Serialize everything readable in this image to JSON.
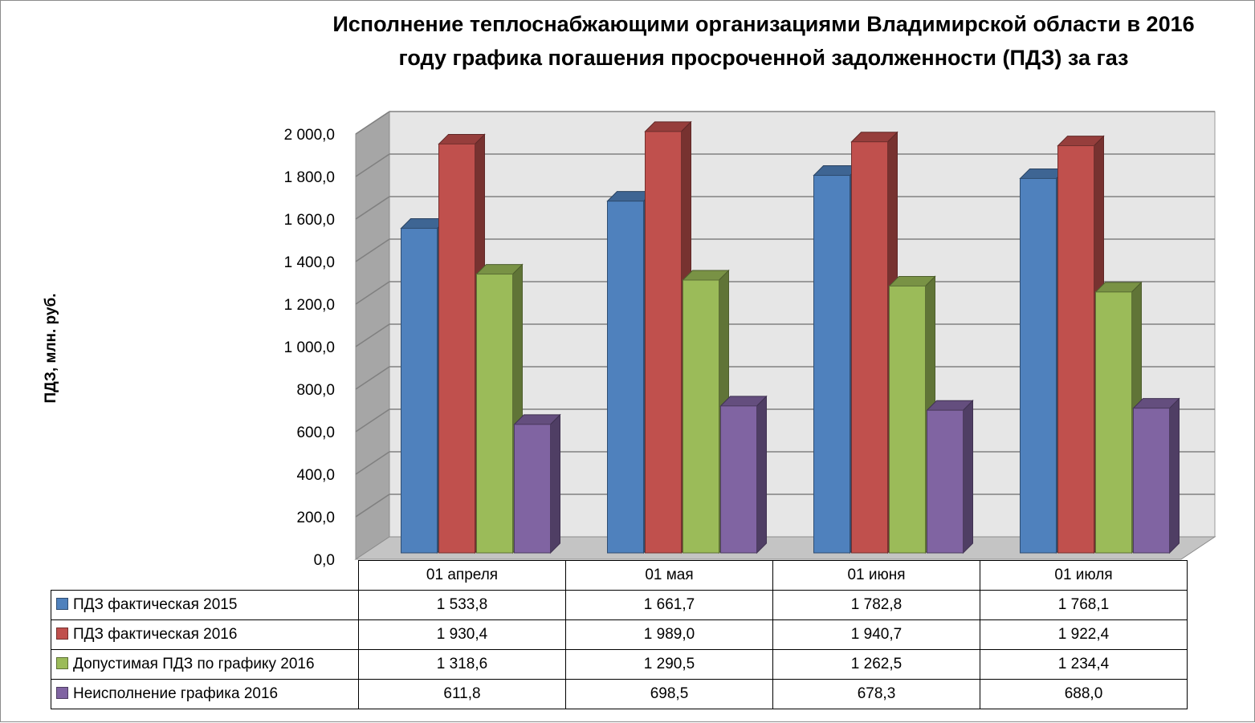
{
  "chart_data": {
    "type": "bar",
    "title": "Исполнение теплоснабжающими организациями Владимирской области в 2016 году графика погашения  просроченной задолженности (ПДЗ) за газ",
    "title_lines": [
      "Исполнение теплоснабжающими организациями Владимирской области в 2016",
      "году графика погашения  просроченной задолженности (ПДЗ) за газ"
    ],
    "ylabel": "ПДЗ, млн. руб.",
    "xlabel": "",
    "ylim": [
      0,
      2000
    ],
    "y_ticks": [
      "0,0",
      "200,0",
      "400,0",
      "600,0",
      "800,0",
      "1 000,0",
      "1 200,0",
      "1 400,0",
      "1 600,0",
      "1 800,0",
      "2 000,0"
    ],
    "grid": true,
    "style": "3d-clustered-column",
    "legend": "data-table",
    "categories": [
      "01 апреля",
      "01 мая",
      "01 июня",
      "01 июля"
    ],
    "series": [
      {
        "name": "ПДЗ фактическая 2015",
        "color": "#4f81bd",
        "values": [
          1533.8,
          1661.7,
          1782.8,
          1768.1
        ],
        "labels": [
          "1 533,8",
          "1 661,7",
          "1 782,8",
          "1 768,1"
        ]
      },
      {
        "name": "ПДЗ фактическая 2016",
        "color": "#c0504d",
        "values": [
          1930.4,
          1989.0,
          1940.7,
          1922.4
        ],
        "labels": [
          "1 930,4",
          "1 989,0",
          "1 940,7",
          "1 922,4"
        ]
      },
      {
        "name": "Допустимая ПДЗ по графику 2016",
        "color": "#9bbb59",
        "values": [
          1318.6,
          1290.5,
          1262.5,
          1234.4
        ],
        "labels": [
          "1 318,6",
          "1 290,5",
          "1 262,5",
          "1 234,4"
        ]
      },
      {
        "name": "Неисполнение графика 2016",
        "color": "#8064a2",
        "values": [
          611.8,
          698.5,
          678.3,
          688.0
        ],
        "labels": [
          "611,8",
          "698,5",
          "678,3",
          "688,0"
        ]
      }
    ]
  }
}
